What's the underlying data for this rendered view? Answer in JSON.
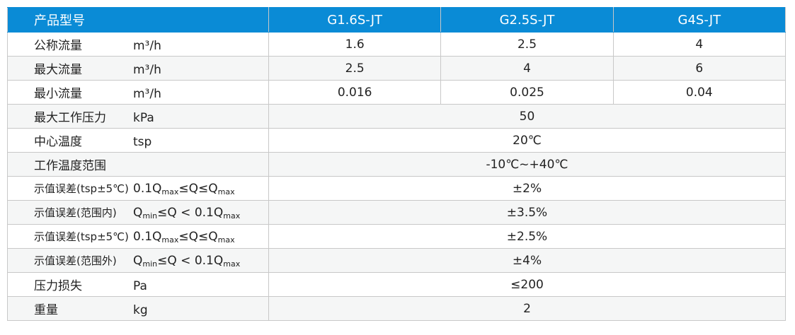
{
  "header": {
    "label": "产品型号",
    "models": [
      "G1.6S-JT",
      "G2.5S-JT",
      "G4S-JT"
    ]
  },
  "colors": {
    "header_bg": "#0a8bd6",
    "alt_row": "#f5f6f6"
  },
  "rows": [
    {
      "label": "公称流量",
      "unit": [
        {
          "t": "m³/h"
        }
      ],
      "values": [
        "1.6",
        "2.5",
        "4"
      ]
    },
    {
      "label": "最大流量",
      "unit": [
        {
          "t": "m³/h"
        }
      ],
      "values": [
        "2.5",
        "4",
        "6"
      ]
    },
    {
      "label": "最小流量",
      "unit": [
        {
          "t": "m³/h"
        }
      ],
      "values": [
        "0.016",
        "0.025",
        "0.04"
      ]
    },
    {
      "label": "最大工作压力",
      "unit": [
        {
          "t": "kPa"
        }
      ],
      "values": [
        "50"
      ]
    },
    {
      "label": "中心温度",
      "unit": [
        {
          "t": "tsp"
        }
      ],
      "values": [
        "20℃"
      ]
    },
    {
      "label": "工作温度范围",
      "unit": [],
      "values": [
        "-10℃~+40℃"
      ]
    },
    {
      "label": "示值误差(tsp±5℃)",
      "small": true,
      "unit": [
        {
          "t": "0.1Q"
        },
        {
          "t": "max",
          "sub": true
        },
        {
          "t": "≤Q≤Q"
        },
        {
          "t": "max",
          "sub": true
        }
      ],
      "values": [
        "±2%"
      ]
    },
    {
      "label": "示值误差(范围内)",
      "small": true,
      "unit": [
        {
          "t": "Q"
        },
        {
          "t": "min",
          "sub": true
        },
        {
          "t": "≤Q < 0.1Q"
        },
        {
          "t": "max",
          "sub": true
        }
      ],
      "values": [
        "±3.5%"
      ]
    },
    {
      "label": "示值误差(tsp±5℃)",
      "small": true,
      "unit": [
        {
          "t": "0.1Q"
        },
        {
          "t": "max",
          "sub": true
        },
        {
          "t": "≤Q≤Q"
        },
        {
          "t": "max",
          "sub": true
        }
      ],
      "values": [
        "±2.5%"
      ]
    },
    {
      "label": "示值误差(范围外)",
      "small": true,
      "unit": [
        {
          "t": "Q"
        },
        {
          "t": "min",
          "sub": true
        },
        {
          "t": "≤Q < 0.1Q"
        },
        {
          "t": "max",
          "sub": true
        }
      ],
      "values": [
        "±4%"
      ]
    },
    {
      "label": "压力损失",
      "unit": [
        {
          "t": "Pa"
        }
      ],
      "values": [
        "≤200"
      ]
    },
    {
      "label": "重量",
      "unit": [
        {
          "t": "kg"
        }
      ],
      "values": [
        "2"
      ]
    }
  ]
}
